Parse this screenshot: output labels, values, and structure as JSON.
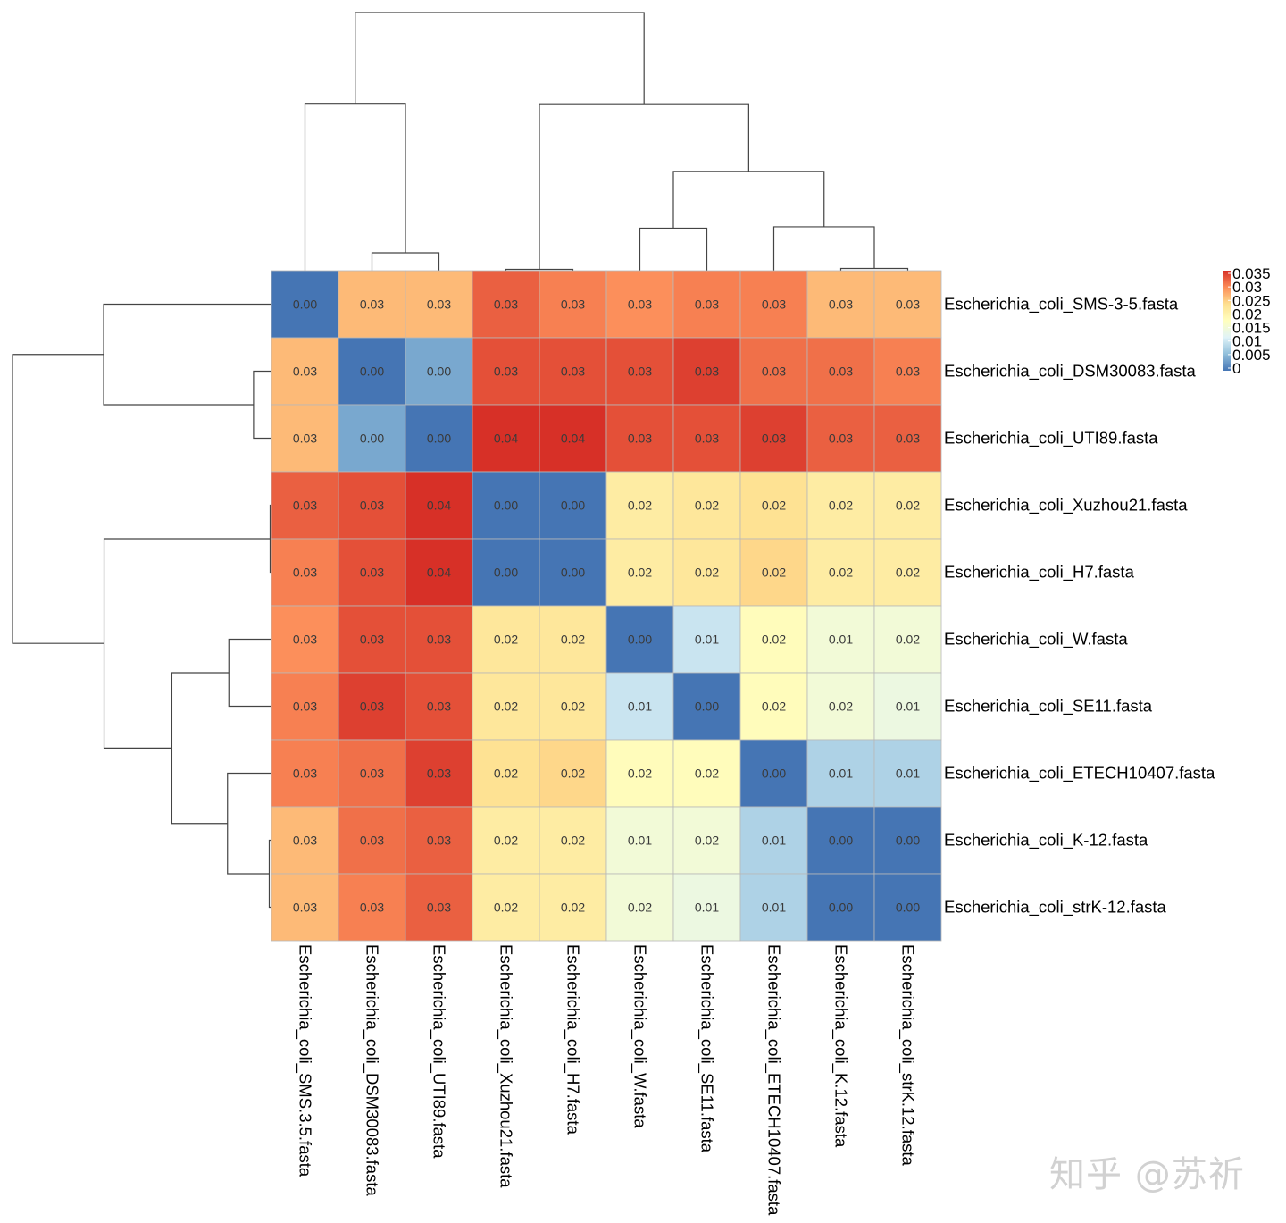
{
  "chart_data": {
    "type": "heatmap",
    "title": "",
    "row_labels": [
      "Escherichia_coli_SMS-3-5.fasta",
      "Escherichia_coli_DSM30083.fasta",
      "Escherichia_coli_UTI89.fasta",
      "Escherichia_coli_Xuzhou21.fasta",
      "Escherichia_coli_H7.fasta",
      "Escherichia_coli_W.fasta",
      "Escherichia_coli_SE11.fasta",
      "Escherichia_coli_ETECH10407.fasta",
      "Escherichia_coli_K-12.fasta",
      "Escherichia_coli_strK-12.fasta"
    ],
    "col_labels": [
      "Escherichia_coli_SMS.3.5.fasta",
      "Escherichia_coli_DSM30083.fasta",
      "Escherichia_coli_UTI89.fasta",
      "Escherichia_coli_Xuzhou21.fasta",
      "Escherichia_coli_H7.fasta",
      "Escherichia_coli_W.fasta",
      "Escherichia_coli_SE11.fasta",
      "Escherichia_coli_ETECH10407.fasta",
      "Escherichia_coli_K.12.fasta",
      "Escherichia_coli_strK.12.fasta"
    ],
    "values": [
      [
        0.0,
        0.026,
        0.026,
        0.032,
        0.03,
        0.029,
        0.03,
        0.03,
        0.026,
        0.026
      ],
      [
        0.026,
        0.0,
        0.004,
        0.033,
        0.033,
        0.033,
        0.034,
        0.031,
        0.031,
        0.03
      ],
      [
        0.026,
        0.004,
        0.0,
        0.035,
        0.035,
        0.033,
        0.033,
        0.034,
        0.032,
        0.032
      ],
      [
        0.032,
        0.033,
        0.035,
        0.0,
        0.0,
        0.021,
        0.022,
        0.023,
        0.021,
        0.021
      ],
      [
        0.03,
        0.033,
        0.035,
        0.0,
        0.0,
        0.021,
        0.022,
        0.024,
        0.021,
        0.021
      ],
      [
        0.029,
        0.033,
        0.033,
        0.022,
        0.022,
        0.0,
        0.01,
        0.018,
        0.015,
        0.015
      ],
      [
        0.03,
        0.034,
        0.033,
        0.022,
        0.022,
        0.01,
        0.0,
        0.018,
        0.015,
        0.014
      ],
      [
        0.03,
        0.031,
        0.034,
        0.023,
        0.024,
        0.018,
        0.018,
        0.0,
        0.008,
        0.008
      ],
      [
        0.026,
        0.031,
        0.032,
        0.021,
        0.021,
        0.015,
        0.015,
        0.008,
        0.0,
        0.0
      ],
      [
        0.026,
        0.03,
        0.032,
        0.021,
        0.021,
        0.015,
        0.014,
        0.008,
        0.0,
        0.0
      ]
    ],
    "cell_text": [
      [
        "0.00",
        "0.03",
        "0.03",
        "0.03",
        "0.03",
        "0.03",
        "0.03",
        "0.03",
        "0.03",
        "0.03"
      ],
      [
        "0.03",
        "0.00",
        "0.00",
        "0.03",
        "0.03",
        "0.03",
        "0.03",
        "0.03",
        "0.03",
        "0.03"
      ],
      [
        "0.03",
        "0.00",
        "0.00",
        "0.04",
        "0.04",
        "0.03",
        "0.03",
        "0.03",
        "0.03",
        "0.03"
      ],
      [
        "0.03",
        "0.03",
        "0.04",
        "0.00",
        "0.00",
        "0.02",
        "0.02",
        "0.02",
        "0.02",
        "0.02"
      ],
      [
        "0.03",
        "0.03",
        "0.04",
        "0.00",
        "0.00",
        "0.02",
        "0.02",
        "0.02",
        "0.02",
        "0.02"
      ],
      [
        "0.03",
        "0.03",
        "0.03",
        "0.02",
        "0.02",
        "0.00",
        "0.01",
        "0.02",
        "0.01",
        "0.02"
      ],
      [
        "0.03",
        "0.03",
        "0.03",
        "0.02",
        "0.02",
        "0.01",
        "0.00",
        "0.02",
        "0.02",
        "0.01"
      ],
      [
        "0.03",
        "0.03",
        "0.03",
        "0.02",
        "0.02",
        "0.02",
        "0.02",
        "0.00",
        "0.01",
        "0.01"
      ],
      [
        "0.03",
        "0.03",
        "0.03",
        "0.02",
        "0.02",
        "0.01",
        "0.02",
        "0.01",
        "0.00",
        "0.00"
      ],
      [
        "0.03",
        "0.03",
        "0.03",
        "0.02",
        "0.02",
        "0.02",
        "0.01",
        "0.01",
        "0.00",
        "0.00"
      ]
    ],
    "dendrogram": {
      "leaves": 10,
      "merges": [
        {
          "a": 3,
          "b": 4,
          "height": 0.0003
        },
        {
          "a": 8,
          "b": 9,
          "height": 0.0005
        },
        {
          "a": 1,
          "b": 2,
          "height": 0.004
        },
        {
          "a": 5,
          "b": 6,
          "height": 0.0095
        },
        {
          "a": 7,
          "b": "m2",
          "height": 0.0098
        },
        {
          "a": "m4",
          "b": "m5",
          "height": 0.0222
        },
        {
          "a": "m1",
          "b": "m6",
          "height": 0.0373
        },
        {
          "a": 0,
          "b": "m3",
          "height": 0.0374
        },
        {
          "a": "m8",
          "b": "m7",
          "height": 0.0577
        }
      ]
    },
    "legend": {
      "min": 0,
      "max": 0.035,
      "ticks": [
        "0",
        "0.005",
        "0.01",
        "0.015",
        "0.02",
        "0.025",
        "0.03",
        "0.035"
      ],
      "position": "right"
    },
    "colors": [
      "#4575b4",
      "#91bfdb",
      "#e0f3f8",
      "#ffffbf",
      "#fee090",
      "#fc8d59",
      "#d73027"
    ]
  },
  "watermark": "知乎 @苏祈"
}
